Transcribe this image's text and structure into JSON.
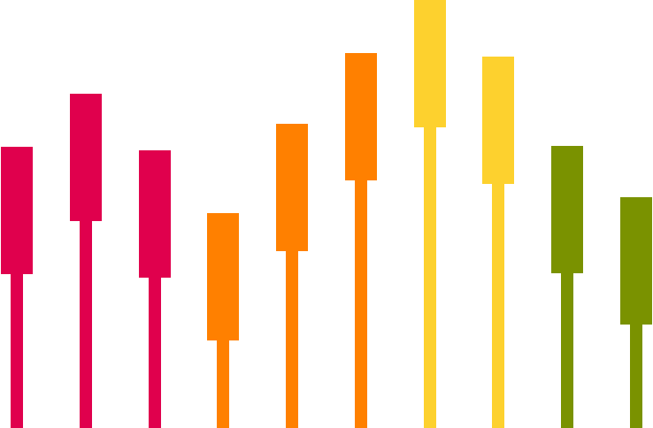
{
  "palette": {
    "pink": "#E0004D",
    "orange": "#FF8000",
    "yellow": "#FDD12E",
    "green": "#7A9200",
    "background": "#FFFFFF"
  },
  "bars": [
    {
      "color": "pink"
    },
    {
      "color": "pink"
    },
    {
      "color": "pink"
    },
    {
      "color": "orange"
    },
    {
      "color": "orange"
    },
    {
      "color": "orange"
    },
    {
      "color": "yellow"
    },
    {
      "color": "yellow"
    },
    {
      "color": "green"
    },
    {
      "color": "green"
    }
  ]
}
